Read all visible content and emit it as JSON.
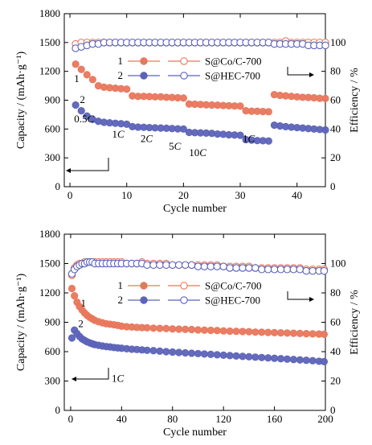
{
  "chart_data": [
    {
      "type": "scatter",
      "xlabel": "Cycle number",
      "ylabel": "Capacity / (mAh·g⁻¹)",
      "y2label": "Efficiency / %",
      "xlim": [
        -1,
        45
      ],
      "ylim": [
        0,
        1800
      ],
      "y2lim": [
        0,
        120
      ],
      "xticks": [
        0,
        10,
        20,
        30,
        40
      ],
      "yticks": [
        0,
        300,
        600,
        900,
        1200,
        1500,
        1800
      ],
      "y2ticks": [
        0,
        20,
        40,
        60,
        80,
        100
      ],
      "legend_position": "top-center",
      "legend": [
        {
          "num": "1",
          "label": "S@Co/C-700"
        },
        {
          "num": "2",
          "label": "S@HEC-700"
        }
      ],
      "rate_labels": [
        {
          "text": "0.5",
          "italic": "C",
          "x": 2.5,
          "y": 670
        },
        {
          "text": "1",
          "italic": "C",
          "x": 8.5,
          "y": 510
        },
        {
          "text": "2",
          "italic": "C",
          "x": 13.5,
          "y": 465
        },
        {
          "text": "5",
          "italic": "C",
          "x": 18.5,
          "y": 385
        },
        {
          "text": "10",
          "italic": "C",
          "x": 22.5,
          "y": 320
        },
        {
          "text": "1",
          "italic": "C",
          "x": 31.5,
          "y": 465
        }
      ],
      "curve_labels": [
        {
          "text": "1",
          "x": 1.2,
          "y": 1090
        },
        {
          "text": "2",
          "x": 2.2,
          "y": 870
        }
      ],
      "series": [
        {
          "name": "S@Co/C-700",
          "role": "capacity",
          "axis": "left",
          "color": "#e8775c",
          "filled": true,
          "x": [
            1,
            2,
            3,
            4,
            5,
            6,
            7,
            8,
            9,
            10,
            11,
            12,
            13,
            14,
            15,
            16,
            17,
            18,
            19,
            20,
            21,
            22,
            23,
            24,
            25,
            26,
            27,
            28,
            29,
            30,
            31,
            32,
            33,
            34,
            35,
            36,
            37,
            38,
            39,
            40,
            41,
            42,
            43,
            44,
            45
          ],
          "y": [
            1275,
            1220,
            1165,
            1115,
            1050,
            1035,
            1030,
            1025,
            1020,
            1015,
            945,
            940,
            940,
            938,
            935,
            935,
            930,
            928,
            925,
            922,
            860,
            858,
            855,
            852,
            850,
            848,
            845,
            842,
            840,
            838,
            790,
            785,
            785,
            782,
            780,
            958,
            950,
            945,
            940,
            935,
            930,
            928,
            925,
            920,
            918
          ]
        },
        {
          "name": "S@Co/C-700",
          "role": "efficiency",
          "axis": "right",
          "color": "#e8775c",
          "filled": false,
          "x": [
            1,
            2,
            3,
            4,
            5,
            6,
            7,
            8,
            9,
            10,
            11,
            12,
            13,
            14,
            15,
            16,
            17,
            18,
            19,
            20,
            21,
            22,
            23,
            24,
            25,
            26,
            27,
            28,
            29,
            30,
            31,
            32,
            33,
            34,
            35,
            36,
            37,
            38,
            39,
            40,
            41,
            42,
            43,
            44,
            45
          ],
          "y": [
            99,
            100,
            100,
            100,
            100,
            100,
            100,
            100,
            100,
            100,
            100,
            100,
            100,
            100,
            100,
            100,
            100,
            100,
            100,
            100,
            100,
            100,
            100,
            100,
            100,
            100,
            100,
            100,
            100,
            100,
            100,
            100,
            100,
            100,
            100,
            100,
            100,
            101,
            100,
            100,
            100,
            100,
            100,
            100,
            100
          ]
        },
        {
          "name": "S@HEC-700",
          "role": "capacity",
          "axis": "left",
          "color": "#5c63b8",
          "filled": true,
          "x": [
            1,
            2,
            3,
            4,
            5,
            6,
            7,
            8,
            9,
            10,
            11,
            12,
            13,
            14,
            15,
            16,
            17,
            18,
            19,
            20,
            21,
            22,
            23,
            24,
            25,
            26,
            27,
            28,
            29,
            30,
            31,
            32,
            33,
            34,
            35,
            36,
            37,
            38,
            39,
            40,
            41,
            42,
            43,
            44,
            45
          ],
          "y": [
            850,
            790,
            735,
            700,
            680,
            670,
            665,
            660,
            655,
            650,
            625,
            620,
            618,
            615,
            612,
            610,
            608,
            605,
            602,
            600,
            565,
            562,
            560,
            558,
            555,
            548,
            545,
            540,
            538,
            535,
            490,
            485,
            480,
            478,
            475,
            640,
            632,
            625,
            620,
            615,
            610,
            605,
            600,
            595,
            590
          ]
        },
        {
          "name": "S@HEC-700",
          "role": "efficiency",
          "axis": "right",
          "color": "#5c63b8",
          "filled": false,
          "x": [
            1,
            2,
            3,
            4,
            5,
            6,
            7,
            8,
            9,
            10,
            11,
            12,
            13,
            14,
            15,
            16,
            17,
            18,
            19,
            20,
            21,
            22,
            23,
            24,
            25,
            26,
            27,
            28,
            29,
            30,
            31,
            32,
            33,
            34,
            35,
            36,
            37,
            38,
            39,
            40,
            41,
            42,
            43,
            44,
            45
          ],
          "y": [
            96,
            97,
            98,
            99,
            99,
            100,
            100,
            100,
            100,
            100,
            100,
            100,
            100,
            100,
            100,
            100,
            100,
            100,
            100,
            100,
            100,
            100,
            100,
            100,
            100,
            100,
            100,
            100,
            100,
            100,
            100,
            100,
            100,
            100,
            100,
            99,
            99,
            99,
            99,
            99,
            99,
            98,
            98,
            98,
            98
          ]
        }
      ]
    },
    {
      "type": "scatter",
      "xlabel": "Cycle number",
      "ylabel": "Capacity / (mAh·g⁻¹)",
      "y2label": "Efficiency / %",
      "xlim": [
        -5,
        200
      ],
      "ylim": [
        0,
        1800
      ],
      "y2lim": [
        0,
        120
      ],
      "xticks": [
        0,
        40,
        80,
        120,
        160,
        200
      ],
      "yticks": [
        0,
        300,
        600,
        900,
        1200,
        1500,
        1800
      ],
      "y2ticks": [
        0,
        20,
        40,
        60,
        80,
        100
      ],
      "legend_position": "top-center",
      "legend": [
        {
          "num": "1",
          "label": "S@Co/C-700"
        },
        {
          "num": "2",
          "label": "S@HEC-700"
        }
      ],
      "rate_labels": [
        {
          "text": "1",
          "italic": "C",
          "x": 37,
          "y": 290
        }
      ],
      "curve_labels": [
        {
          "text": "1",
          "x": 10,
          "y": 1060
        },
        {
          "text": "2",
          "x": 8,
          "y": 850
        }
      ],
      "series": [
        {
          "name": "S@Co/C-700",
          "role": "capacity",
          "axis": "left",
          "color": "#e8775c",
          "filled": true,
          "x": [
            1,
            3,
            5,
            7,
            9,
            11,
            13,
            15,
            17,
            19,
            22,
            25,
            28,
            31,
            34,
            37,
            40,
            44,
            48,
            52,
            56,
            60,
            65,
            70,
            75,
            80,
            85,
            90,
            95,
            100,
            105,
            110,
            115,
            120,
            125,
            130,
            135,
            140,
            145,
            150,
            155,
            160,
            165,
            170,
            175,
            180,
            185,
            190,
            195,
            199
          ],
          "y": [
            1245,
            1170,
            1105,
            1060,
            1025,
            995,
            970,
            950,
            935,
            920,
            905,
            895,
            885,
            880,
            875,
            868,
            860,
            855,
            852,
            848,
            846,
            844,
            840,
            838,
            836,
            832,
            830,
            828,
            826,
            822,
            820,
            818,
            816,
            812,
            810,
            808,
            806,
            804,
            800,
            798,
            796,
            794,
            792,
            790,
            788,
            786,
            784,
            782,
            780,
            778
          ]
        },
        {
          "name": "S@Co/C-700",
          "role": "efficiency",
          "axis": "right",
          "color": "#e8775c",
          "filled": false,
          "x": [
            1,
            3,
            5,
            7,
            9,
            11,
            13,
            15,
            17,
            19,
            22,
            25,
            28,
            31,
            34,
            37,
            40,
            44,
            48,
            52,
            56,
            60,
            65,
            70,
            75,
            80,
            85,
            90,
            95,
            100,
            105,
            110,
            115,
            120,
            125,
            130,
            135,
            140,
            145,
            150,
            155,
            160,
            165,
            170,
            175,
            180,
            185,
            190,
            195,
            199
          ],
          "y": [
            92,
            97,
            99,
            100,
            100,
            101,
            101,
            101,
            101,
            101,
            101,
            101,
            101,
            101,
            101,
            101,
            101,
            100,
            100,
            100,
            101,
            100,
            100,
            100,
            100,
            99,
            99,
            99,
            99,
            99,
            99,
            99,
            99,
            98,
            98,
            98,
            98,
            98,
            97,
            97,
            97,
            97,
            97,
            97,
            97,
            97,
            96,
            96,
            96,
            96
          ]
        },
        {
          "name": "S@HEC-700",
          "role": "capacity",
          "axis": "left",
          "color": "#5c63b8",
          "filled": true,
          "x": [
            1,
            3,
            5,
            7,
            9,
            11,
            13,
            15,
            17,
            19,
            22,
            25,
            28,
            31,
            34,
            37,
            40,
            44,
            48,
            52,
            56,
            60,
            65,
            70,
            75,
            80,
            85,
            90,
            95,
            100,
            105,
            110,
            115,
            120,
            125,
            130,
            135,
            140,
            145,
            150,
            155,
            160,
            165,
            170,
            175,
            180,
            185,
            190,
            195,
            199
          ],
          "y": [
            740,
            820,
            785,
            755,
            730,
            715,
            700,
            690,
            680,
            672,
            665,
            658,
            652,
            648,
            642,
            638,
            635,
            630,
            625,
            622,
            618,
            614,
            610,
            605,
            600,
            596,
            592,
            588,
            584,
            580,
            576,
            572,
            568,
            564,
            560,
            556,
            552,
            548,
            544,
            540,
            536,
            532,
            528,
            524,
            520,
            516,
            512,
            508,
            502,
            498
          ]
        },
        {
          "name": "S@HEC-700",
          "role": "efficiency",
          "axis": "right",
          "color": "#5c63b8",
          "filled": false,
          "x": [
            1,
            3,
            5,
            7,
            9,
            11,
            13,
            15,
            17,
            19,
            22,
            25,
            28,
            31,
            34,
            37,
            40,
            44,
            48,
            52,
            56,
            60,
            65,
            70,
            75,
            80,
            85,
            90,
            95,
            100,
            105,
            110,
            115,
            120,
            125,
            130,
            135,
            140,
            145,
            150,
            155,
            160,
            165,
            170,
            175,
            180,
            185,
            190,
            195,
            199
          ],
          "y": [
            93,
            96,
            98,
            99,
            100,
            100,
            101,
            101,
            101,
            100,
            100,
            100,
            100,
            100,
            100,
            100,
            100,
            100,
            100,
            100,
            100,
            99,
            99,
            99,
            99,
            99,
            99,
            99,
            99,
            98,
            98,
            98,
            98,
            98,
            97,
            97,
            97,
            97,
            97,
            96,
            96,
            96,
            96,
            96,
            96,
            96,
            95,
            95,
            95,
            95
          ]
        }
      ]
    }
  ]
}
